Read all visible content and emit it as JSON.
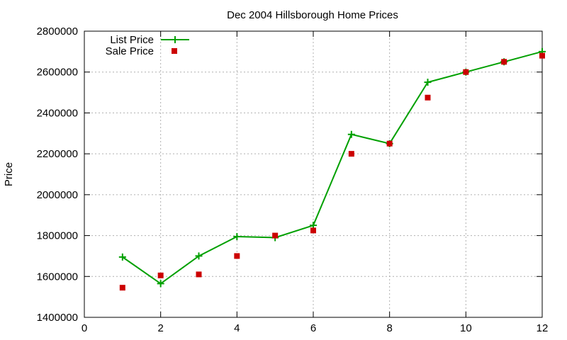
{
  "chart_data": {
    "type": "line",
    "title": "Dec 2004 Hillsborough Home Prices",
    "xlabel": "",
    "ylabel": "Price",
    "xlim": [
      0,
      12
    ],
    "ylim": [
      1400000,
      2800000
    ],
    "xticks": [
      0,
      2,
      4,
      6,
      8,
      10,
      12
    ],
    "yticks": [
      1400000,
      1600000,
      1800000,
      2000000,
      2200000,
      2400000,
      2600000,
      2800000
    ],
    "grid": true,
    "legend_position": "top-left",
    "series": [
      {
        "name": "List Price",
        "style": "line-with-plus-markers",
        "color": "#00a000",
        "x": [
          1,
          2,
          3,
          4,
          5,
          6,
          7,
          8,
          9,
          10,
          11,
          12
        ],
        "y": [
          1695000,
          1565000,
          1700000,
          1795000,
          1790000,
          1850000,
          2295000,
          2250000,
          2550000,
          2600000,
          2650000,
          2700000
        ]
      },
      {
        "name": "Sale Price",
        "style": "square-markers",
        "color": "#cc0000",
        "x": [
          1,
          2,
          3,
          4,
          5,
          6,
          7,
          8,
          9,
          10,
          11,
          12
        ],
        "y": [
          1545000,
          1605000,
          1610000,
          1700000,
          1800000,
          1825000,
          2200000,
          2250000,
          2475000,
          2600000,
          2650000,
          2680000
        ]
      }
    ]
  }
}
